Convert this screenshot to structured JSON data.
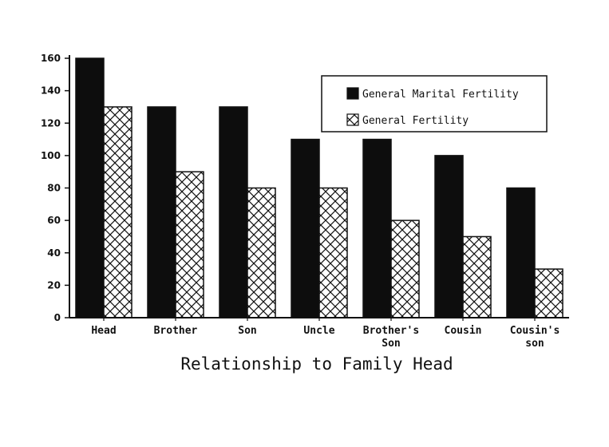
{
  "chart_data": {
    "type": "bar",
    "title": "",
    "xlabel": "Relationship to Family Head",
    "ylabel": "",
    "ylim": [
      0,
      160
    ],
    "yticks": [
      0,
      20,
      40,
      60,
      80,
      100,
      120,
      140,
      160
    ],
    "categories": [
      [
        "Head"
      ],
      [
        "Brother"
      ],
      [
        "Son"
      ],
      [
        "Uncle"
      ],
      [
        "Brother's",
        "Son"
      ],
      [
        "Cousin"
      ],
      [
        "Cousin's",
        "son"
      ]
    ],
    "series": [
      {
        "name": "General Marital Fertility",
        "values": [
          160,
          130,
          130,
          110,
          110,
          100,
          80
        ],
        "fill": "solid-black"
      },
      {
        "name": "General Fertility",
        "values": [
          130,
          90,
          80,
          80,
          60,
          50,
          30
        ],
        "fill": "crosshatch"
      }
    ],
    "legend_position": "top-right",
    "grid": false,
    "colors": {
      "solid": "#0d0d0d",
      "hatch": "#111111",
      "axis": "#111111",
      "background": "#ffffff"
    }
  }
}
